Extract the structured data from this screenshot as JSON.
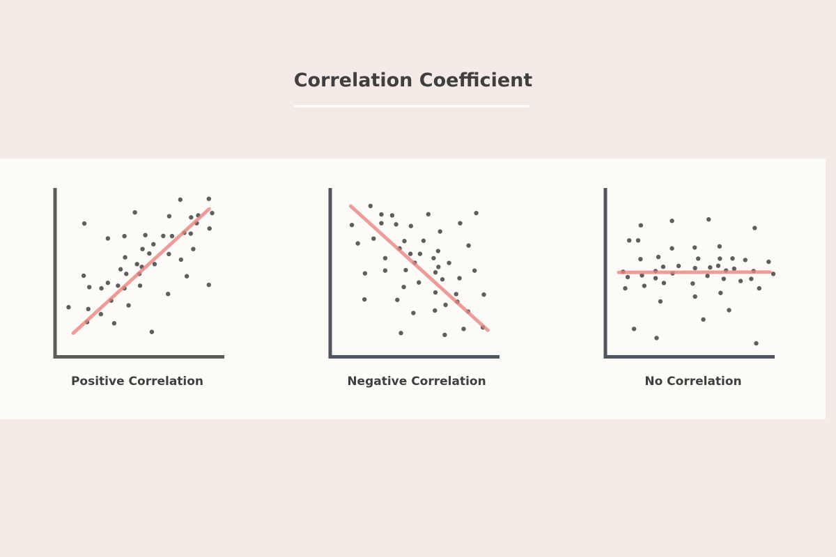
{
  "title": "Correlation Coefficient",
  "colors": {
    "background": "#f5ebe6",
    "panel": "#fdfbf7",
    "dot": "#5e5e5e",
    "trend": "#e8847f",
    "axis_gray": "#5c5c5c",
    "axis_slate": "#4f5561"
  },
  "chart_data": [
    {
      "type": "scatter",
      "title": "Positive Correlation",
      "xlim": [
        0,
        100
      ],
      "ylim": [
        0,
        100
      ],
      "grid": false,
      "points": [
        [
          6.9,
          28.9
        ],
        [
          16.4,
          79.4
        ],
        [
          16,
          47.9
        ],
        [
          19.4,
          41
        ],
        [
          18.8,
          27.8
        ],
        [
          18.1,
          19.9
        ],
        [
          26.4,
          24.7
        ],
        [
          26.7,
          40.3
        ],
        [
          30.6,
          70.4
        ],
        [
          30.6,
          43.6
        ],
        [
          32.6,
          32.9
        ],
        [
          34.4,
          19.2
        ],
        [
          36.7,
          41.9
        ],
        [
          38.3,
          51.8
        ],
        [
          40.6,
          71.8
        ],
        [
          41,
          59
        ],
        [
          41.7,
          49
        ],
        [
          40.6,
          40.3
        ],
        [
          43.1,
          30
        ],
        [
          46.9,
          86.1
        ],
        [
          48.2,
          54.9
        ],
        [
          49.6,
          49
        ],
        [
          50,
          41.9
        ],
        [
          51.1,
          53.2
        ],
        [
          51.5,
          64
        ],
        [
          53.2,
          72.4
        ],
        [
          55.6,
          61.3
        ],
        [
          58.1,
          66.9
        ],
        [
          58.8,
          54.9
        ],
        [
          57.1,
          14
        ],
        [
          64,
          71.9
        ],
        [
          66.9,
          36.9
        ],
        [
          67.4,
          61
        ],
        [
          67.6,
          83.8
        ],
        [
          69.3,
          71.8
        ],
        [
          74.3,
          93.8
        ],
        [
          74.7,
          57.6
        ],
        [
          76.7,
          73.8
        ],
        [
          78.2,
          47.6
        ],
        [
          80.6,
          73.3
        ],
        [
          80.8,
          83.1
        ],
        [
          82.1,
          64
        ],
        [
          84.2,
          79.6
        ],
        [
          85.1,
          84.3
        ],
        [
          91.5,
          94.3
        ],
        [
          91.9,
          76.4
        ],
        [
          93.5,
          85.7
        ],
        [
          91.5,
          42.4
        ]
      ],
      "trend_line": [
        [
          9.7,
          13.2
        ],
        [
          91.7,
          88.2
        ]
      ]
    },
    {
      "type": "scatter",
      "title": "Negative Correlation",
      "xlim": [
        0,
        100
      ],
      "ylim": [
        0,
        100
      ],
      "grid": false,
      "points": [
        [
          11.8,
          78.5
        ],
        [
          23,
          90
        ],
        [
          29.6,
          84.9
        ],
        [
          36.1,
          84.3
        ],
        [
          29.6,
          79.6
        ],
        [
          38.5,
          78.9
        ],
        [
          47.4,
          77.9
        ],
        [
          57.9,
          85
        ],
        [
          86.8,
          85.7
        ],
        [
          77.1,
          79.6
        ],
        [
          65,
          74.6
        ],
        [
          15.4,
          67.4
        ],
        [
          24.9,
          70.3
        ],
        [
          43.5,
          68.8
        ],
        [
          55,
          69
        ],
        [
          40.6,
          64.4
        ],
        [
          47.1,
          61.1
        ],
        [
          52.9,
          61.1
        ],
        [
          63.8,
          62.8
        ],
        [
          31.9,
          58.5
        ],
        [
          61.1,
          58.5
        ],
        [
          82.2,
          66.1
        ],
        [
          49.7,
          55.7
        ],
        [
          70.4,
          55.6
        ],
        [
          64,
          53.2
        ],
        [
          19.7,
          49.3
        ],
        [
          31.9,
          51
        ],
        [
          44.3,
          51.3
        ],
        [
          62.2,
          49.9
        ],
        [
          85.8,
          51
        ],
        [
          66.4,
          45.7
        ],
        [
          76.7,
          46.4
        ],
        [
          52.2,
          43.8
        ],
        [
          43.1,
          41.1
        ],
        [
          62.2,
          37.8
        ],
        [
          74.7,
          36.8
        ],
        [
          91.4,
          36.5
        ],
        [
          19.4,
          33.6
        ],
        [
          39.2,
          33.3
        ],
        [
          75.4,
          32.2
        ],
        [
          68.3,
          30.3
        ],
        [
          48.9,
          25.4
        ],
        [
          61.9,
          26.9
        ],
        [
          81.9,
          26.3
        ],
        [
          41.4,
          13.3
        ],
        [
          67.8,
          12.2
        ],
        [
          79.2,
          15.8
        ],
        [
          90.8,
          16.7
        ]
      ],
      "trend_line": [
        [
          11.1,
          89.9
        ],
        [
          93.8,
          15
        ]
      ]
    },
    {
      "type": "scatter",
      "title": "No Correlation",
      "xlim": [
        0,
        100
      ],
      "ylim": [
        0,
        100
      ],
      "grid": false,
      "points": [
        [
          9.4,
          50.3
        ],
        [
          12.2,
          47.1
        ],
        [
          10.7,
          40.3
        ],
        [
          13.1,
          69.2
        ],
        [
          18.5,
          69.2
        ],
        [
          20.1,
          78.3
        ],
        [
          19.9,
          57.9
        ],
        [
          20.8,
          48.1
        ],
        [
          22.2,
          41.8
        ],
        [
          16,
          15.8
        ],
        [
          29.6,
          10.3
        ],
        [
          29,
          50.7
        ],
        [
          29,
          46.4
        ],
        [
          30.7,
          59.2
        ],
        [
          33.6,
          53.3
        ],
        [
          34,
          43.5
        ],
        [
          31.9,
          32.4
        ],
        [
          38.9,
          81
        ],
        [
          38.9,
          64.4
        ],
        [
          39.3,
          49.3
        ],
        [
          42.9,
          53.8
        ],
        [
          51.4,
          43.2
        ],
        [
          52.6,
          64.9
        ],
        [
          54.7,
          58.2
        ],
        [
          52.8,
          52.5
        ],
        [
          52.8,
          35.3
        ],
        [
          57.8,
          21.5
        ],
        [
          61,
          81.9
        ],
        [
          60.3,
          47.8
        ],
        [
          61.9,
          52.9
        ],
        [
          66.8,
          53.9
        ],
        [
          67.6,
          65.6
        ],
        [
          67.8,
          58.2
        ],
        [
          68.2,
          37.5
        ],
        [
          71.5,
          51
        ],
        [
          70.1,
          46
        ],
        [
          73.3,
          27.1
        ],
        [
          75.4,
          58.3
        ],
        [
          76.4,
          52.1
        ],
        [
          80.3,
          44.7
        ],
        [
          83.1,
          57.4
        ],
        [
          86.7,
          46
        ],
        [
          88.1,
          50.7
        ],
        [
          88.8,
          76.7
        ],
        [
          91.5,
          40.3
        ],
        [
          89.7,
          7.1
        ],
        [
          97.2,
          56.3
        ],
        [
          100,
          49
        ]
      ],
      "trend_line": [
        [
          6.7,
          49.9
        ],
        [
          97.9,
          50.1
        ]
      ]
    }
  ]
}
